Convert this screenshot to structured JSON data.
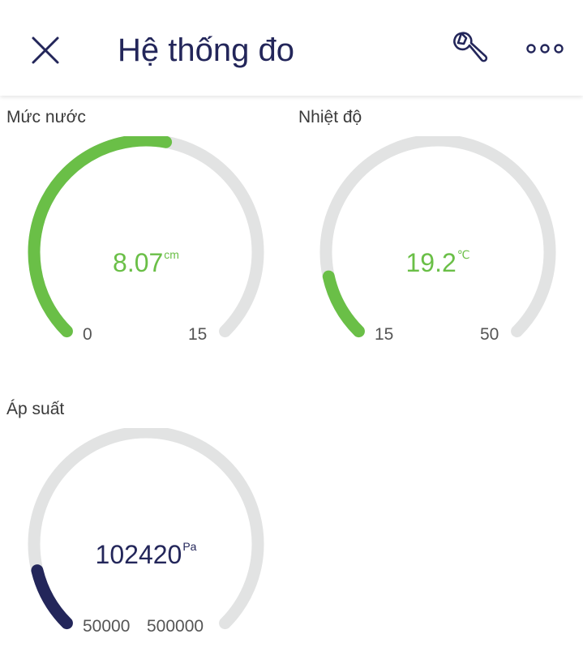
{
  "header": {
    "title": "Hệ thống đo",
    "close_icon": "close-icon",
    "settings_icon": "wrench-icon",
    "more_icon": "more-horizontal-icon"
  },
  "gauges": [
    {
      "label": "Mức nước",
      "value": "8.07",
      "unit": "cm",
      "min": "0",
      "max": "15",
      "fraction": 0.538,
      "color": "#6abf47"
    },
    {
      "label": "Nhiệt độ",
      "value": "19.2",
      "unit": "℃",
      "min": "15",
      "max": "50",
      "fraction": 0.12,
      "color": "#6abf47"
    },
    {
      "label": "Áp suất",
      "value": "102420",
      "unit": "Pa",
      "min": "50000",
      "max": "500000",
      "fraction": 0.116,
      "color": "#23265a"
    }
  ],
  "colors": {
    "track": "#e2e3e3",
    "title": "#23265a"
  }
}
